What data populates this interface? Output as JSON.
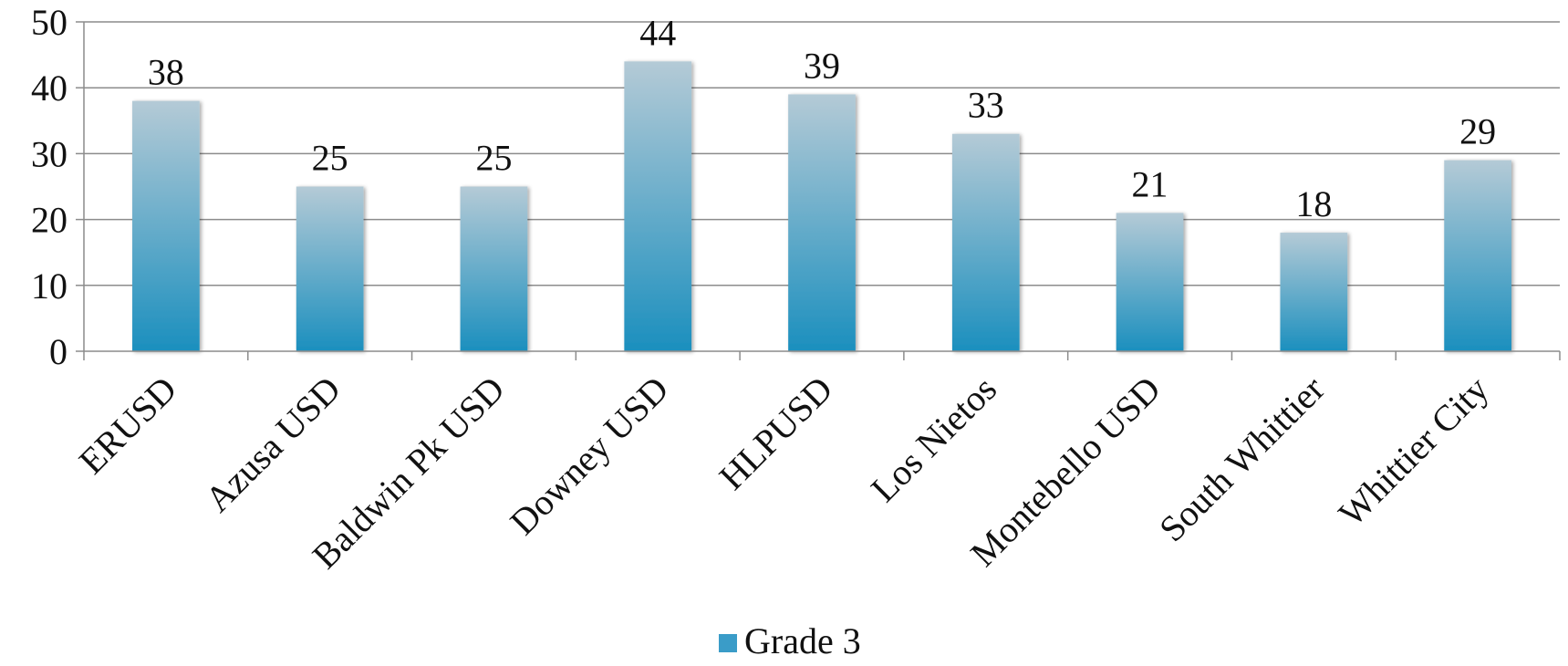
{
  "chart_data": {
    "type": "bar",
    "categories": [
      "ERUSD",
      "Azusa USD",
      "Baldwin Pk USD",
      "Downey USD",
      "HLPUSD",
      "Los Nietos",
      "Montebello USD",
      "South Whittier",
      "Whittier City"
    ],
    "series": [
      {
        "name": "Grade 3",
        "values": [
          38,
          25,
          25,
          44,
          39,
          33,
          21,
          18,
          29
        ]
      }
    ],
    "ylim": [
      0,
      50
    ],
    "yticks": [
      0,
      10,
      20,
      30,
      40,
      50
    ],
    "grid": true,
    "legend_position": "bottom",
    "data_labels": [
      "38",
      "25",
      "25",
      "44",
      "39",
      "33",
      "21",
      "18",
      "29"
    ],
    "colors": {
      "bar_top": "#b4cad6",
      "bar_bottom": "#1b8fbe",
      "legend": "#3a9cc8"
    }
  }
}
